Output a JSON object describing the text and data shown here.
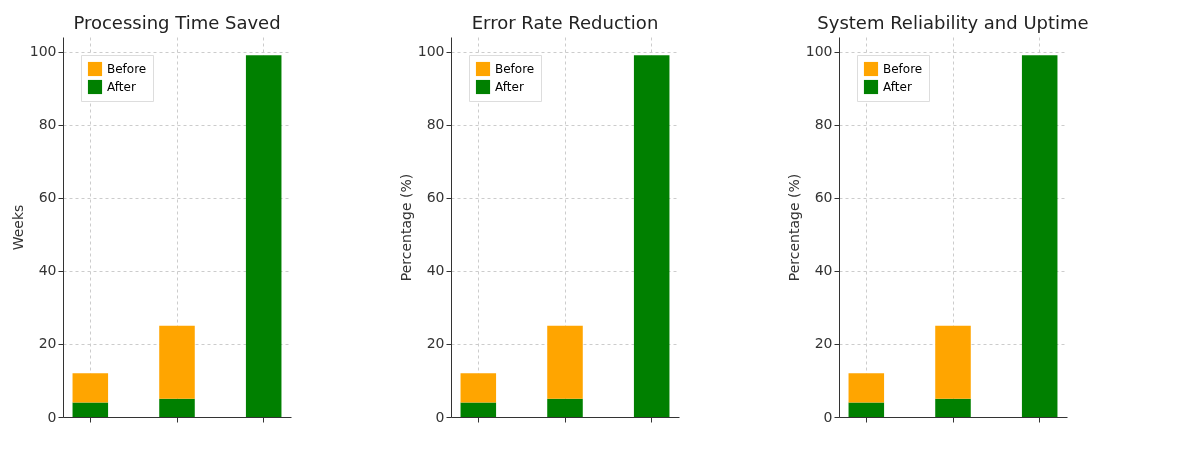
{
  "chart_data": [
    {
      "type": "bar",
      "title": "Processing Time Saved",
      "ylabel": "Weeks",
      "categories": [
        null,
        null,
        null
      ],
      "stacked": true,
      "series": [
        {
          "name": "After",
          "color": "#008000",
          "values": [
            4,
            5,
            99
          ]
        },
        {
          "name": "Before",
          "color": "#ffa500",
          "values": [
            8,
            20,
            null
          ]
        }
      ],
      "ylim": [
        0,
        104
      ],
      "yticks": [
        0,
        20,
        40,
        60,
        80,
        100
      ],
      "grid": true,
      "legend": "top left",
      "tick_labels": "y"
    },
    {
      "type": "bar",
      "title": "Error Rate Reduction",
      "ylabel": "Percentage (%)",
      "categories": [
        null,
        null,
        null
      ],
      "stacked": true,
      "series": [
        {
          "name": "After",
          "color": "#008000",
          "values": [
            4,
            5,
            99
          ]
        },
        {
          "name": "Before",
          "color": "#ffa500",
          "values": [
            8,
            20,
            null
          ]
        }
      ],
      "ylim": [
        0,
        104
      ],
      "yticks": [
        0,
        20,
        40,
        60,
        80,
        100
      ],
      "grid": true,
      "legend": "top left",
      "tick_labels": "y"
    },
    {
      "type": "bar",
      "title": "System Reliability and Uptime",
      "ylabel": "Percentage (%)",
      "categories": [
        null,
        null,
        null
      ],
      "stacked": true,
      "series": [
        {
          "name": "After",
          "color": "#008000",
          "values": [
            4,
            5,
            99
          ]
        },
        {
          "name": "Before",
          "color": "#ffa500",
          "values": [
            8,
            20,
            null
          ]
        }
      ],
      "ylim": [
        0,
        104
      ],
      "yticks": [
        0,
        20,
        40,
        60,
        80,
        100
      ],
      "grid": true,
      "legend": "top left",
      "tick_labels": "y"
    }
  ]
}
